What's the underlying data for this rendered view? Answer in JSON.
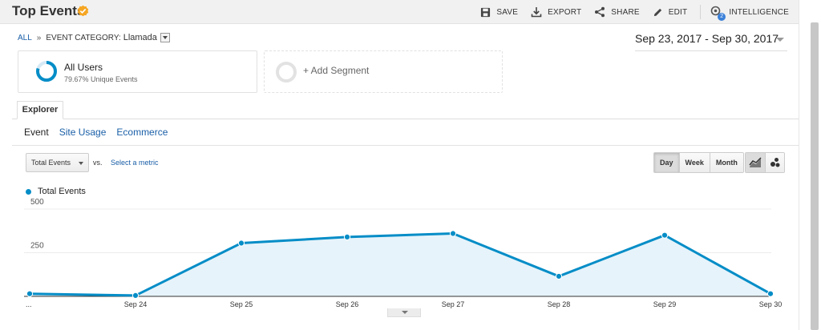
{
  "header": {
    "title": "Top Events",
    "actions": [
      {
        "label": "SAVE",
        "icon": "save-icon"
      },
      {
        "label": "EXPORT",
        "icon": "export-icon"
      },
      {
        "label": "SHARE",
        "icon": "share-icon"
      },
      {
        "label": "EDIT",
        "icon": "pencil-icon"
      },
      {
        "label": "INTELLIGENCE",
        "icon": "intelligence-icon",
        "badge": "2"
      }
    ]
  },
  "breadcrumb": {
    "root": "ALL",
    "separator": "»",
    "dimension": "EVENT CATEGORY:",
    "value": "Llamada"
  },
  "date_range": "Sep 23, 2017 - Sep 30, 2017",
  "segments": {
    "active": {
      "title": "All Users",
      "subtitle": "79.67% Unique Events",
      "share": 0.7967
    },
    "add_label": "+ Add Segment"
  },
  "tabs": {
    "main": "Explorer",
    "sub": [
      "Event",
      "Site Usage",
      "Ecommerce"
    ],
    "active_sub": "Event"
  },
  "controls": {
    "metric": "Total Events",
    "vs_label": "vs.",
    "select_metric": "Select a metric",
    "periods": [
      "Day",
      "Week",
      "Month"
    ],
    "active_period": "Day"
  },
  "legend": {
    "series_name": "Total Events"
  },
  "colors": {
    "accent": "#058dc7",
    "area_fill": "#e6f3fa",
    "link": "#1a5fa8",
    "verified": "#f5a623"
  },
  "chart_data": {
    "type": "area",
    "x": [
      "...",
      "Sep 24",
      "Sep 25",
      "Sep 26",
      "Sep 27",
      "Sep 28",
      "Sep 29",
      "Sep 30"
    ],
    "series": [
      {
        "name": "Total Events",
        "values": [
          15,
          5,
          305,
          340,
          360,
          115,
          350,
          15
        ]
      }
    ],
    "yticks": [
      250,
      500
    ],
    "ylim": [
      0,
      500
    ],
    "grid": true,
    "legend": "top-left"
  }
}
